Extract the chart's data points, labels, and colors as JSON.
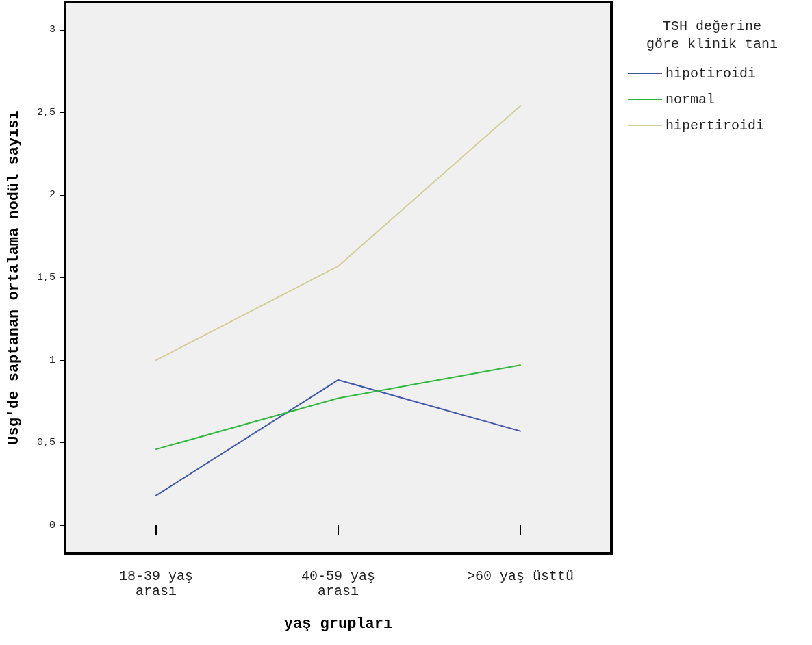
{
  "chart_data": {
    "type": "line",
    "xlabel": "yaş grupları",
    "ylabel": "Usg'de saptanan ortalama nodül sayısı",
    "legend_title": "TSH değerine\ngöre klinik tanı",
    "categories": [
      "18-39 yaş\narası",
      "40-59 yaş\narası",
      ">60 yaş üsttü"
    ],
    "series": [
      {
        "name": "hipotiroidi",
        "color": "#3d55a8",
        "values": [
          0.18,
          0.88,
          0.57
        ]
      },
      {
        "name": "normal",
        "color": "#2db83d",
        "values": [
          0.46,
          0.77,
          0.97
        ]
      },
      {
        "name": "hipertiroidi",
        "color": "#d4cf98",
        "values": [
          1.0,
          1.57,
          2.54
        ]
      }
    ],
    "ylim": [
      -0.17,
      3.17
    ],
    "yticks": [
      {
        "value": 0,
        "label": "0"
      },
      {
        "value": 0.5,
        "label": "0,5"
      },
      {
        "value": 1,
        "label": "1"
      },
      {
        "value": 1.5,
        "label": "1,5"
      },
      {
        "value": 2,
        "label": "2"
      },
      {
        "value": 2.5,
        "label": "2,5"
      },
      {
        "value": 3,
        "label": "3"
      }
    ],
    "grid": false,
    "legend": "right",
    "marker": "none",
    "line_style": "solid"
  }
}
